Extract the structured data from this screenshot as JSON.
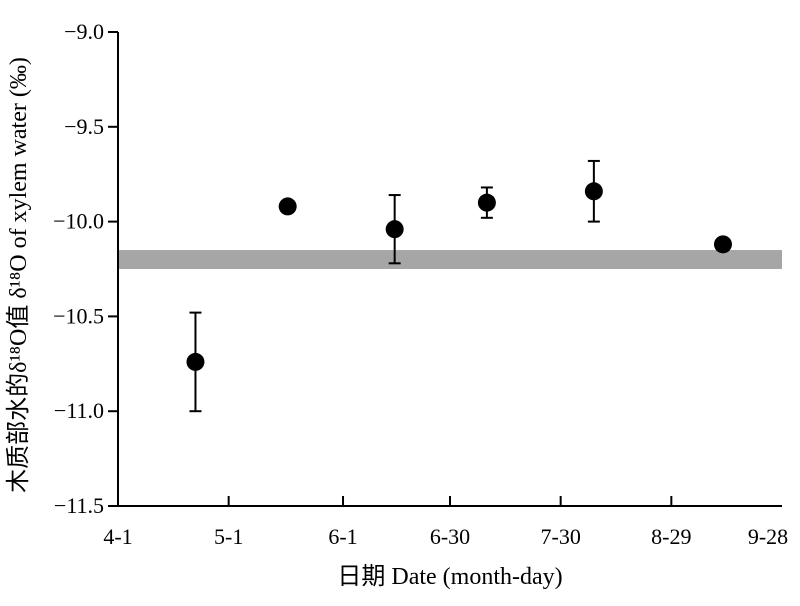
{
  "chart_data": {
    "type": "scatter",
    "xlabel": "日期 Date (month-day)",
    "ylabel_cn": "木质部水的δ¹⁸O值",
    "ylabel_en": "δ¹⁸O of xylem water (‰)",
    "x_ticks": [
      "4-1",
      "5-1",
      "6-1",
      "6-30",
      "7-30",
      "8-29",
      "9-28"
    ],
    "x_tick_dates": [
      "04-01",
      "05-01",
      "06-01",
      "06-30",
      "07-30",
      "08-29",
      "09-28"
    ],
    "ylim": [
      -11.5,
      -9.0
    ],
    "y_ticks": [
      "−9.0",
      "−9.5",
      "−10.0",
      "−10.5",
      "−11.0",
      "−11.5"
    ],
    "y_tick_values": [
      -9.0,
      -9.5,
      -10.0,
      -10.5,
      -11.0,
      -11.5
    ],
    "grid": false,
    "points": [
      {
        "date": "04-22",
        "y": -10.74,
        "err_low": -11.0,
        "err_high": -10.48
      },
      {
        "date": "05-17",
        "y": -9.92
      },
      {
        "date": "06-15",
        "y": -10.04,
        "err_low": -10.22,
        "err_high": -9.86
      },
      {
        "date": "07-10",
        "y": -9.9,
        "err_low": -9.98,
        "err_high": -9.82
      },
      {
        "date": "08-08",
        "y": -9.84,
        "err_low": -10.0,
        "err_high": -9.68
      },
      {
        "date": "09-12",
        "y": -10.12
      }
    ],
    "band": {
      "y_low": -10.25,
      "y_high": -10.15,
      "color": "#a6a6a6"
    },
    "marker_color": "#000000"
  }
}
